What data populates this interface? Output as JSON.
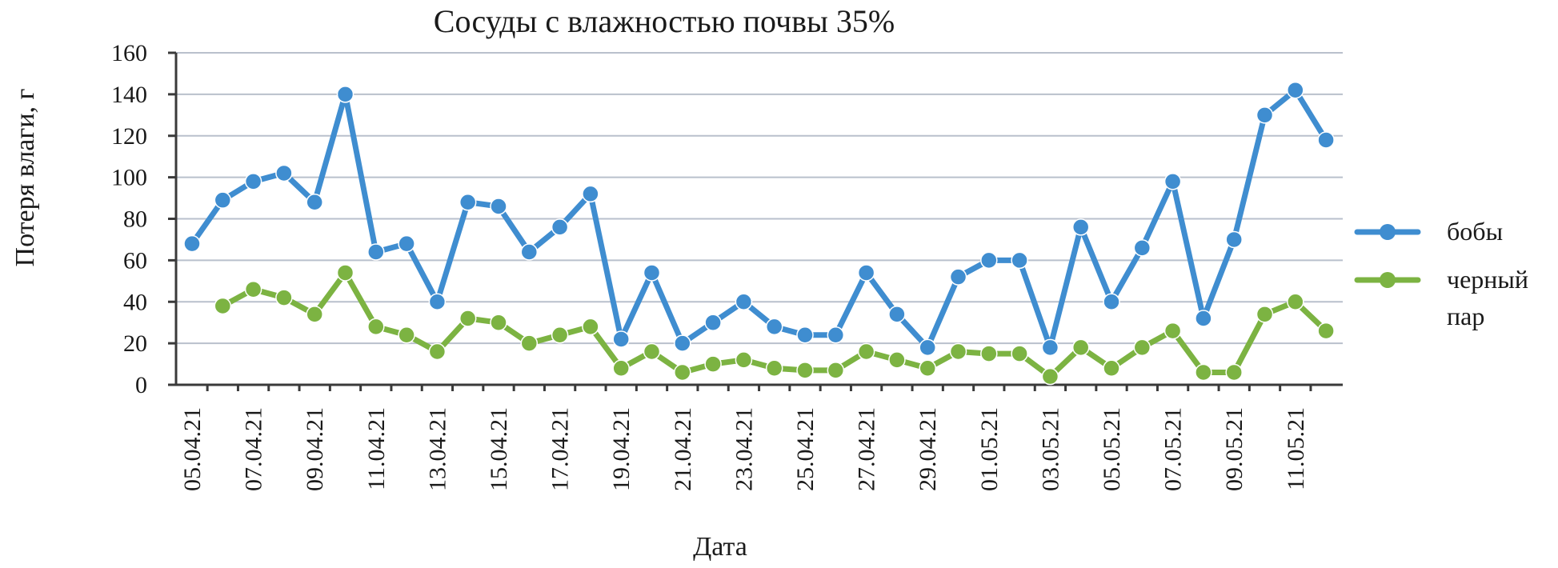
{
  "chart_data": {
    "type": "line",
    "title": "Сосуды с влажностью почвы 35%",
    "xlabel": "Дата",
    "ylabel": "Потеря влаги, г",
    "ylim": [
      0,
      160
    ],
    "yticks": [
      0,
      20,
      40,
      60,
      80,
      100,
      120,
      140,
      160
    ],
    "grid": true,
    "legend_position": "right",
    "dates": [
      "05.04.21",
      "06.04.21",
      "07.04.21",
      "08.04.21",
      "09.04.21",
      "10.04.21",
      "11.04.21",
      "12.04.21",
      "13.04.21",
      "14.04.21",
      "15.04.21",
      "16.04.21",
      "17.04.21",
      "18.04.21",
      "19.04.21",
      "20.04.21",
      "21.04.21",
      "22.04.21",
      "23.04.21",
      "24.04.21",
      "25.04.21",
      "26.04.21",
      "27.04.21",
      "28.04.21",
      "29.04.21",
      "30.04.21",
      "01.05.21",
      "02.05.21",
      "03.05.21",
      "04.05.21",
      "05.05.21",
      "06.05.21",
      "07.05.21",
      "08.05.21",
      "09.05.21",
      "10.05.21",
      "11.05.21",
      "12.05.21"
    ],
    "tick_labels": [
      "05.04.21",
      "07.04.21",
      "09.04.21",
      "11.04.21",
      "13.04.21",
      "15.04.21",
      "17.04.21",
      "19.04.21",
      "21.04.21",
      "23.04.21",
      "25.04.21",
      "27.04.21",
      "29.04.21",
      "01.05.21",
      "03.05.21",
      "05.05.21",
      "07.05.21",
      "09.05.21",
      "11.05.21"
    ],
    "series": [
      {
        "name": "бобы",
        "color": "#3f8dd0",
        "values": [
          68,
          89,
          98,
          102,
          88,
          140,
          64,
          68,
          40,
          88,
          86,
          64,
          76,
          92,
          22,
          54,
          20,
          30,
          40,
          28,
          24,
          24,
          54,
          34,
          18,
          52,
          60,
          60,
          18,
          76,
          40,
          66,
          98,
          32,
          70,
          130,
          142,
          118
        ]
      },
      {
        "name": "черный пар",
        "legend_lines": [
          "черный",
          "пар"
        ],
        "color": "#7cb342",
        "values": [
          null,
          38,
          46,
          42,
          34,
          54,
          28,
          24,
          16,
          32,
          30,
          20,
          24,
          28,
          8,
          16,
          6,
          10,
          12,
          8,
          7,
          7,
          16,
          12,
          8,
          16,
          15,
          15,
          4,
          18,
          8,
          18,
          26,
          6,
          6,
          34,
          40,
          26
        ]
      }
    ]
  }
}
